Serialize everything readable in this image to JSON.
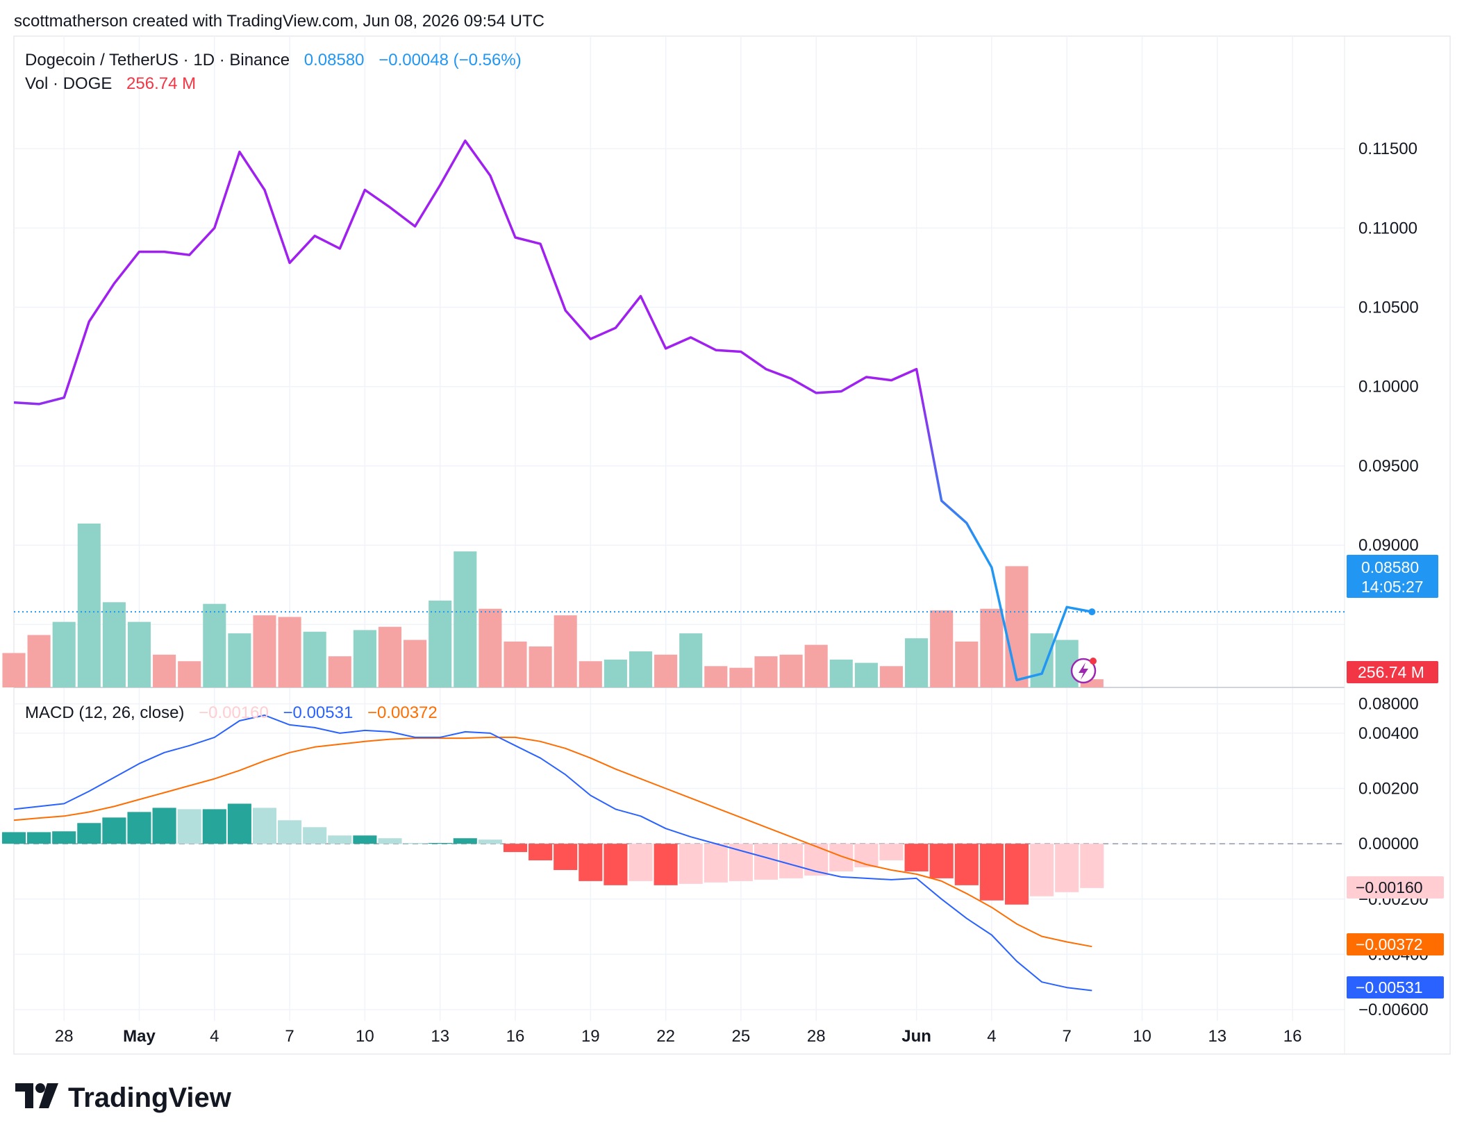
{
  "header": {
    "credit": "scottmatherson created with TradingView.com, Jun 08, 2026 09:54 UTC"
  },
  "legend": {
    "symbol": "Dogecoin / TetherUS · 1D · Binance",
    "last": "0.08580",
    "change": "−0.00048 (−0.56%)",
    "vol_label": "Vol · DOGE",
    "vol_value": "256.74 M",
    "macd_label": "MACD (12, 26, close)",
    "macd_hist": "−0.00160",
    "macd_line": "−0.00531",
    "macd_signal": "−0.00372"
  },
  "badges": {
    "price": "0.08580",
    "countdown": "14:05:27",
    "volume": "256.74 M",
    "hist": "−0.00160",
    "signal": "−0.00372",
    "macd": "−0.00531"
  },
  "footer": {
    "brand": "TradingView"
  },
  "colors": {
    "price_line_old": "#a020f0",
    "price_line_new": "#2196f3",
    "vol_up": "#8fd3c8",
    "vol_down": "#f5a3a3",
    "macd_line": "#2962ff",
    "signal_line": "#ff6d00",
    "hist_up_strong": "#26a69a",
    "hist_up_weak": "#b2dfdb",
    "hist_down_strong": "#ff5252",
    "hist_down_weak": "#ffcdd2"
  },
  "chart_data": [
    {
      "type": "line",
      "title": "Dogecoin / TetherUS · 1D · Binance",
      "x_ticks": [
        "28",
        "May",
        "4",
        "7",
        "10",
        "13",
        "16",
        "19",
        "22",
        "25",
        "28",
        "Jun",
        "4",
        "7",
        "10",
        "13",
        "16"
      ],
      "y_ticks": [
        "0.11500",
        "0.11000",
        "0.10500",
        "0.10000",
        "0.09500",
        "0.09000",
        "0.08000"
      ],
      "ylim": [
        0.0781,
        0.1175
      ],
      "last_value": 0.0858,
      "series": [
        {
          "dates": [
            "Apr 26",
            "Apr 27",
            "Apr 28",
            "Apr 29",
            "Apr 30",
            "May 1",
            "May 2",
            "May 3",
            "May 4",
            "May 5",
            "May 6",
            "May 7",
            "May 8",
            "May 9",
            "May 10",
            "May 11",
            "May 12",
            "May 13",
            "May 14",
            "May 15",
            "May 16",
            "May 17",
            "May 18",
            "May 19",
            "May 20",
            "May 21",
            "May 22",
            "May 23",
            "May 24",
            "May 25",
            "May 26",
            "May 27",
            "May 28",
            "May 29",
            "May 30",
            "May 31",
            "Jun 1",
            "Jun 2",
            "Jun 3",
            "Jun 4",
            "Jun 5",
            "Jun 6",
            "Jun 7",
            "Jun 8"
          ],
          "values": [
            0.099,
            0.0989,
            0.0993,
            0.1041,
            0.1065,
            0.1085,
            0.1085,
            0.1083,
            0.11,
            0.1148,
            0.1124,
            0.1078,
            0.1095,
            0.1087,
            0.1124,
            0.1113,
            0.1101,
            0.1127,
            0.1155,
            0.1133,
            0.1094,
            0.109,
            0.1048,
            0.103,
            0.1037,
            0.1057,
            0.1024,
            0.1031,
            0.1023,
            0.1022,
            0.1011,
            0.1005,
            0.0996,
            0.0997,
            0.1006,
            0.1004,
            0.1011,
            0.0928,
            0.0914,
            0.0886,
            0.0815,
            0.0819,
            0.0861,
            0.0858
          ]
        }
      ]
    },
    {
      "type": "bar",
      "title": "Vol · DOGE",
      "dates": [
        "Apr 26",
        "Apr 27",
        "Apr 28",
        "Apr 29",
        "Apr 30",
        "May 1",
        "May 2",
        "May 3",
        "May 4",
        "May 5",
        "May 6",
        "May 7",
        "May 8",
        "May 9",
        "May 10",
        "May 11",
        "May 12",
        "May 13",
        "May 14",
        "May 15",
        "May 16",
        "May 17",
        "May 18",
        "May 19",
        "May 20",
        "May 21",
        "May 22",
        "May 23",
        "May 24",
        "May 25",
        "May 26",
        "May 27",
        "May 28",
        "May 29",
        "May 30",
        "May 31",
        "Jun 1",
        "Jun 2",
        "Jun 3",
        "Jun 4",
        "Jun 5",
        "Jun 6",
        "Jun 7",
        "Jun 8"
      ],
      "volume_rel": [
        0.21,
        0.32,
        0.4,
        1.0,
        0.52,
        0.4,
        0.2,
        0.16,
        0.51,
        0.33,
        0.44,
        0.43,
        0.34,
        0.19,
        0.35,
        0.37,
        0.29,
        0.53,
        0.83,
        0.48,
        0.28,
        0.25,
        0.44,
        0.16,
        0.17,
        0.22,
        0.2,
        0.33,
        0.13,
        0.12,
        0.19,
        0.2,
        0.26,
        0.17,
        0.15,
        0.13,
        0.3,
        0.47,
        0.28,
        0.48,
        0.74,
        0.33,
        0.29,
        0.05
      ],
      "direction": [
        "down",
        "down",
        "up",
        "up",
        "up",
        "up",
        "down",
        "down",
        "up",
        "up",
        "down",
        "down",
        "up",
        "down",
        "up",
        "down",
        "down",
        "up",
        "up",
        "down",
        "down",
        "down",
        "down",
        "down",
        "up",
        "up",
        "down",
        "up",
        "down",
        "down",
        "down",
        "down",
        "down",
        "up",
        "up",
        "down",
        "up",
        "down",
        "down",
        "down",
        "down",
        "up",
        "up",
        "down"
      ],
      "last_value": "256.74 M"
    },
    {
      "type": "line",
      "title": "MACD (12, 26, close)",
      "y_ticks": [
        "0.00400",
        "0.00200",
        "0.00000",
        "−0.00200",
        "−0.00400",
        "−0.00600"
      ],
      "ylim": [
        -0.0061,
        0.0046
      ],
      "dates": [
        "Apr 26",
        "Apr 27",
        "Apr 28",
        "Apr 29",
        "Apr 30",
        "May 1",
        "May 2",
        "May 3",
        "May 4",
        "May 5",
        "May 6",
        "May 7",
        "May 8",
        "May 9",
        "May 10",
        "May 11",
        "May 12",
        "May 13",
        "May 14",
        "May 15",
        "May 16",
        "May 17",
        "May 18",
        "May 19",
        "May 20",
        "May 21",
        "May 22",
        "May 23",
        "May 24",
        "May 25",
        "May 26",
        "May 27",
        "May 28",
        "May 29",
        "May 30",
        "May 31",
        "Jun 1",
        "Jun 2",
        "Jun 3",
        "Jun 4",
        "Jun 5",
        "Jun 6",
        "Jun 7",
        "Jun 8"
      ],
      "series": [
        {
          "name": "MACD",
          "values": [
            0.00125,
            0.00135,
            0.00145,
            0.0019,
            0.0024,
            0.0029,
            0.0033,
            0.00355,
            0.00385,
            0.00445,
            0.00465,
            0.0043,
            0.0042,
            0.004,
            0.0041,
            0.00405,
            0.00385,
            0.00385,
            0.00405,
            0.004,
            0.00355,
            0.0031,
            0.0025,
            0.00175,
            0.00125,
            0.001,
            0.00055,
            0.00025,
            0.0,
            -0.00025,
            -0.0005,
            -0.00075,
            -0.001,
            -0.0012,
            -0.00125,
            -0.0013,
            -0.00125,
            -0.002,
            -0.0027,
            -0.0033,
            -0.00425,
            -0.005,
            -0.0052,
            -0.00531
          ]
        },
        {
          "name": "Signal",
          "values": [
            0.00085,
            0.00093,
            0.001,
            0.00115,
            0.00135,
            0.0016,
            0.00185,
            0.0021,
            0.00235,
            0.00265,
            0.003,
            0.0033,
            0.0035,
            0.0036,
            0.0037,
            0.00378,
            0.00382,
            0.00382,
            0.00382,
            0.00385,
            0.00385,
            0.0037,
            0.00345,
            0.0031,
            0.0027,
            0.00235,
            0.002,
            0.00165,
            0.0013,
            0.00095,
            0.0006,
            0.00025,
            -0.0001,
            -0.00045,
            -0.00075,
            -0.00095,
            -0.0011,
            -0.00135,
            -0.0018,
            -0.0023,
            -0.0029,
            -0.00335,
            -0.00355,
            -0.00372
          ]
        },
        {
          "name": "Histogram",
          "values": [
            0.00042,
            0.00042,
            0.00045,
            0.00075,
            0.00095,
            0.00115,
            0.0013,
            0.00125,
            0.00125,
            0.00145,
            0.0013,
            0.00085,
            0.0006,
            0.0003,
            0.0003,
            0.0002,
            3e-05,
            3e-05,
            0.0002,
            0.00015,
            -0.0003,
            -0.0006,
            -0.00095,
            -0.00135,
            -0.0015,
            -0.00135,
            -0.0015,
            -0.00145,
            -0.0014,
            -0.00135,
            -0.0013,
            -0.00125,
            -0.00115,
            -0.001,
            -0.00085,
            -0.0006,
            -0.001,
            -0.00125,
            -0.0015,
            -0.00205,
            -0.0022,
            -0.0019,
            -0.00175,
            -0.0016
          ]
        }
      ]
    }
  ]
}
